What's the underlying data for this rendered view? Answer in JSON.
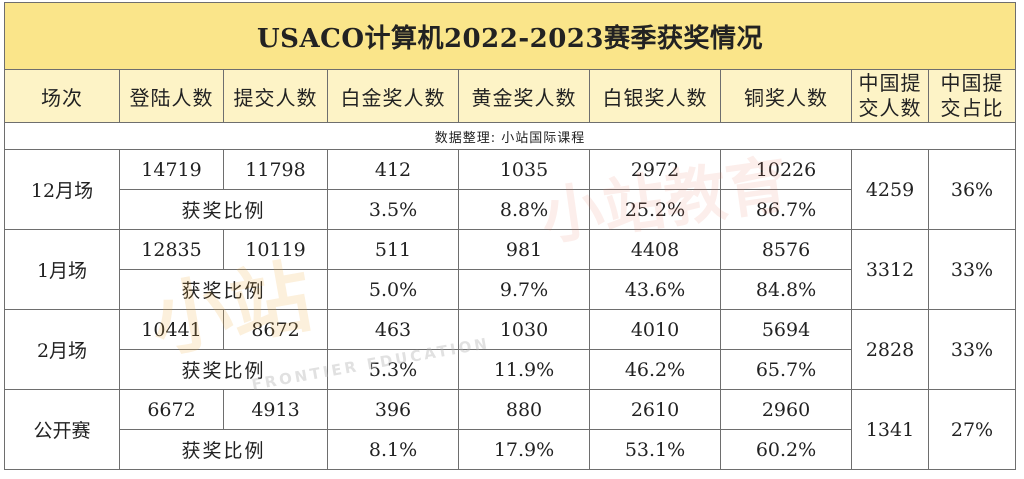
{
  "title": "USACO计算机2022-2023赛季获奖情况",
  "headers": [
    "场次",
    "登陆人数",
    "提交人数",
    "白金奖人数",
    "黄金奖人数",
    "白银奖人数",
    "铜奖人数",
    "中国提交人数",
    "中国提交占比"
  ],
  "header_china_submit": [
    "中国提",
    "交人数"
  ],
  "header_china_ratio": [
    "中国提",
    "交占比"
  ],
  "note": "数据整理: 小站国际课程",
  "rows": [
    {
      "name": "12月场",
      "login": "14719",
      "submit": "11798",
      "platinum": "412",
      "gold": "1035",
      "silver": "2972",
      "bronze": "10226",
      "rate_label": "获奖比例",
      "platinum_rate": "3.5%",
      "gold_rate": "8.8%",
      "silver_rate": "25.2%",
      "bronze_rate": "86.7%",
      "china_submit": "4259",
      "china_ratio": "36%"
    },
    {
      "name": "1月场",
      "login": "12835",
      "submit": "10119",
      "platinum": "511",
      "gold": "981",
      "silver": "4408",
      "bronze": "8576",
      "rate_label": "获奖比例",
      "platinum_rate": "5.0%",
      "gold_rate": "9.7%",
      "silver_rate": "43.6%",
      "bronze_rate": "84.8%",
      "china_submit": "3312",
      "china_ratio": "33%"
    },
    {
      "name": "2月场",
      "login": "10441",
      "submit": "8672",
      "platinum": "463",
      "gold": "1030",
      "silver": "4010",
      "bronze": "5694",
      "rate_label": "获奖比例",
      "platinum_rate": "5.3%",
      "gold_rate": "11.9%",
      "silver_rate": "46.2%",
      "bronze_rate": "65.7%",
      "china_submit": "2828",
      "china_ratio": "33%"
    },
    {
      "name": "公开赛",
      "login": "6672",
      "submit": "4913",
      "platinum": "396",
      "gold": "880",
      "silver": "2610",
      "bronze": "2960",
      "rate_label": "获奖比例",
      "platinum_rate": "8.1%",
      "gold_rate": "17.9%",
      "silver_rate": "53.1%",
      "bronze_rate": "60.2%",
      "china_submit": "1341",
      "china_ratio": "27%"
    }
  ],
  "watermarks": [
    "小站教育",
    "小站",
    "FRONTIER EDUCATION"
  ]
}
